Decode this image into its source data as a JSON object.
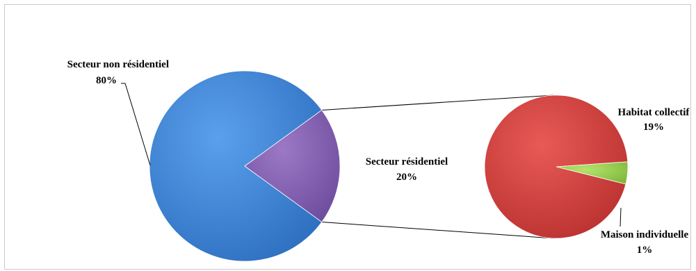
{
  "chart_data": {
    "type": "pie",
    "subtype": "pie-of-pie",
    "title": "",
    "primary": {
      "slices": [
        {
          "label": "Secteur non résidentiel",
          "value": 80,
          "pct": "80%",
          "color": "#4a8fdf"
        },
        {
          "label": "Secteur résidentiel",
          "value": 20,
          "pct": "20%",
          "color": "#8b66b8"
        }
      ]
    },
    "secondary": {
      "of": "Secteur résidentiel",
      "slices": [
        {
          "label": "Habitat collectif",
          "value": 19,
          "pct": "19%",
          "color": "#dc4744"
        },
        {
          "label": "Maison individuelle",
          "value": 1,
          "pct": "1%",
          "color": "#9fd45a"
        }
      ]
    }
  }
}
